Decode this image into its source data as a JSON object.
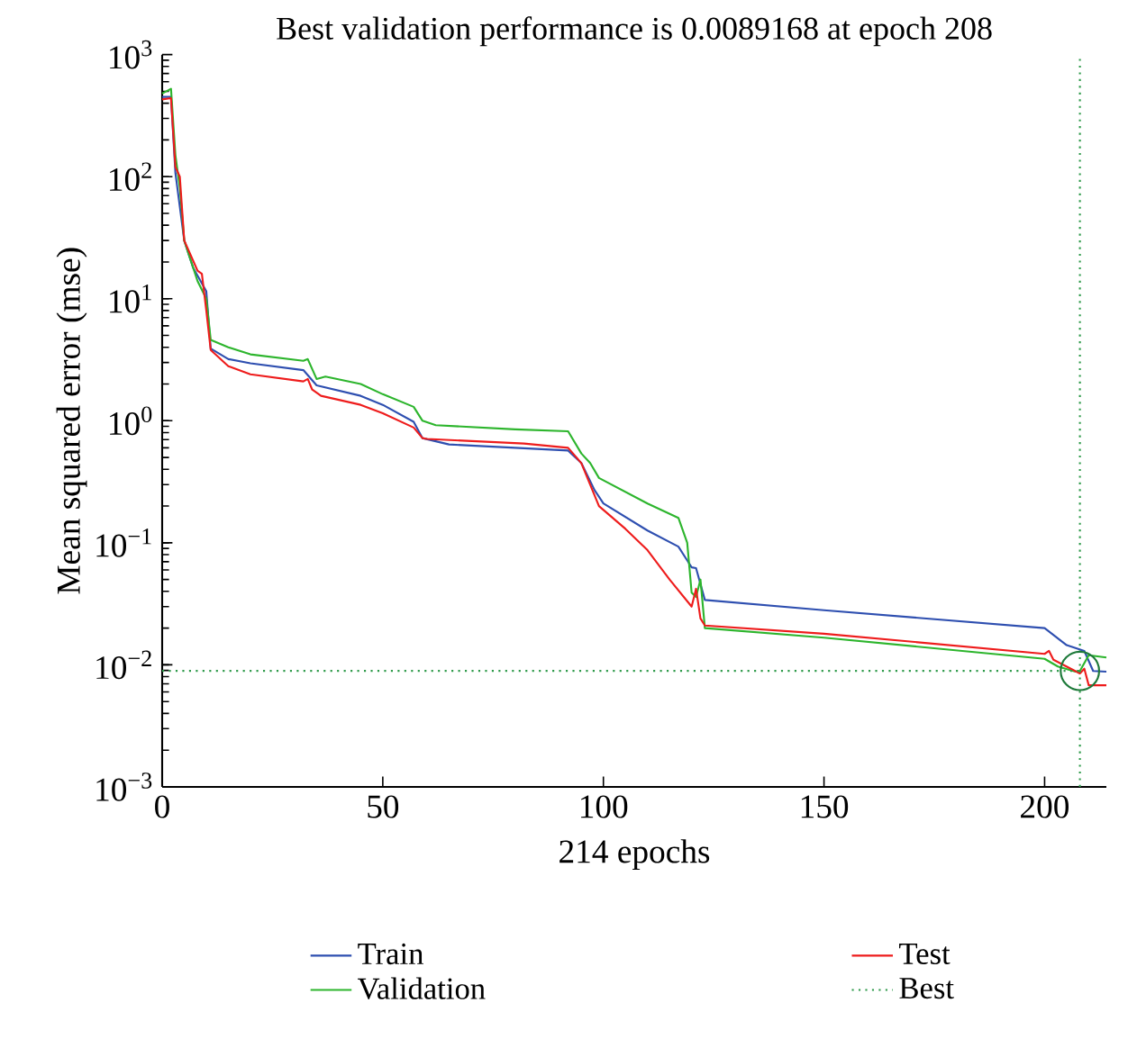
{
  "chart_data": {
    "type": "line",
    "title": "Best validation performance is 0.0089168 at epoch 208",
    "xlabel": "214 epochs",
    "ylabel": "Mean squared error (mse)",
    "log": "y",
    "xlim": [
      0,
      214
    ],
    "xticks": [
      0,
      50,
      100,
      150,
      200
    ],
    "ylim": [
      0.001,
      1000
    ],
    "yticks": [
      {
        "value": 0.001,
        "label": "10$^{−3}$"
      },
      {
        "value": 0.01,
        "label": "10$^{−2}$"
      },
      {
        "value": 0.1,
        "label": "10$^{−1}$"
      },
      {
        "value": 1,
        "label": "10$^{0}$"
      },
      {
        "value": 10,
        "label": "10$^{1}$"
      },
      {
        "value": 100,
        "label": "10$^{2}$"
      },
      {
        "value": 1000,
        "label": "10$^{3}$"
      }
    ],
    "legend": "bottom",
    "grid": false,
    "marker": "none",
    "line_style": "solid",
    "series": [
      {
        "name": "Train",
        "color": "#2e4fb0",
        "x": [
          0,
          2,
          3,
          5,
          7,
          10,
          11,
          15,
          20,
          32,
          35,
          45,
          50,
          57,
          59,
          65,
          80,
          92,
          95,
          98,
          100,
          110,
          117,
          120,
          121,
          123,
          150,
          200,
          205,
          209,
          211,
          214
        ],
        "values": [
          450,
          450,
          107,
          30,
          18,
          11.5,
          3.9,
          3.2,
          2.96,
          2.6,
          1.95,
          1.6,
          1.35,
          0.98,
          0.72,
          0.64,
          0.6,
          0.57,
          0.45,
          0.27,
          0.21,
          0.126,
          0.093,
          0.063,
          0.062,
          0.034,
          0.028,
          0.02,
          0.0145,
          0.013,
          0.0089,
          0.0088
        ]
      },
      {
        "name": "Validation",
        "color": "#2db52d",
        "x": [
          0,
          2,
          3,
          4,
          5,
          8,
          10,
          11,
          15,
          20,
          32,
          33,
          35,
          37,
          45,
          50,
          57,
          59,
          62,
          80,
          92,
          95,
          97,
          99,
          110,
          117,
          119,
          120,
          121,
          122,
          123,
          150,
          200,
          203,
          207,
          208,
          210,
          214
        ],
        "values": [
          480,
          525,
          150,
          81,
          30,
          14,
          10,
          4.6,
          4.0,
          3.5,
          3.1,
          3.2,
          2.2,
          2.3,
          2.0,
          1.65,
          1.3,
          1.0,
          0.92,
          0.85,
          0.82,
          0.54,
          0.45,
          0.34,
          0.21,
          0.16,
          0.1,
          0.039,
          0.036,
          0.05,
          0.02,
          0.0167,
          0.0112,
          0.0097,
          0.0088,
          0.0089168,
          0.012,
          0.0115
        ]
      },
      {
        "name": "Test",
        "color": "#ee1c1c",
        "x": [
          0,
          2,
          3,
          4,
          5,
          8,
          9,
          10,
          11,
          15,
          20,
          32,
          33,
          34,
          36,
          45,
          50,
          57,
          59,
          60,
          82,
          92,
          95,
          99,
          105,
          110,
          115,
          120,
          121,
          122,
          123,
          150,
          200,
          201,
          202,
          208,
          209,
          210,
          214
        ],
        "values": [
          430,
          440,
          120,
          100,
          30,
          17,
          16,
          8,
          3.8,
          2.8,
          2.4,
          2.1,
          2.2,
          1.8,
          1.6,
          1.35,
          1.15,
          0.88,
          0.72,
          0.71,
          0.65,
          0.6,
          0.45,
          0.2,
          0.13,
          0.087,
          0.05,
          0.03,
          0.042,
          0.024,
          0.021,
          0.018,
          0.0123,
          0.013,
          0.011,
          0.0085,
          0.0093,
          0.0068,
          0.0068
        ]
      },
      {
        "type": "scatter",
        "color": "#1e7a3a",
        "marker": "circle",
        "x": [
          208
        ],
        "values": [
          0.0089168
        ]
      }
    ],
    "ref_lines": [
      {
        "axis": "x",
        "value": 208,
        "label": "Best",
        "color": "#2e9a4a",
        "line_style": "dotted"
      },
      {
        "axis": "y",
        "value": 0.0089168,
        "color": "#2e9a4a",
        "line_style": "dotted"
      }
    ]
  }
}
